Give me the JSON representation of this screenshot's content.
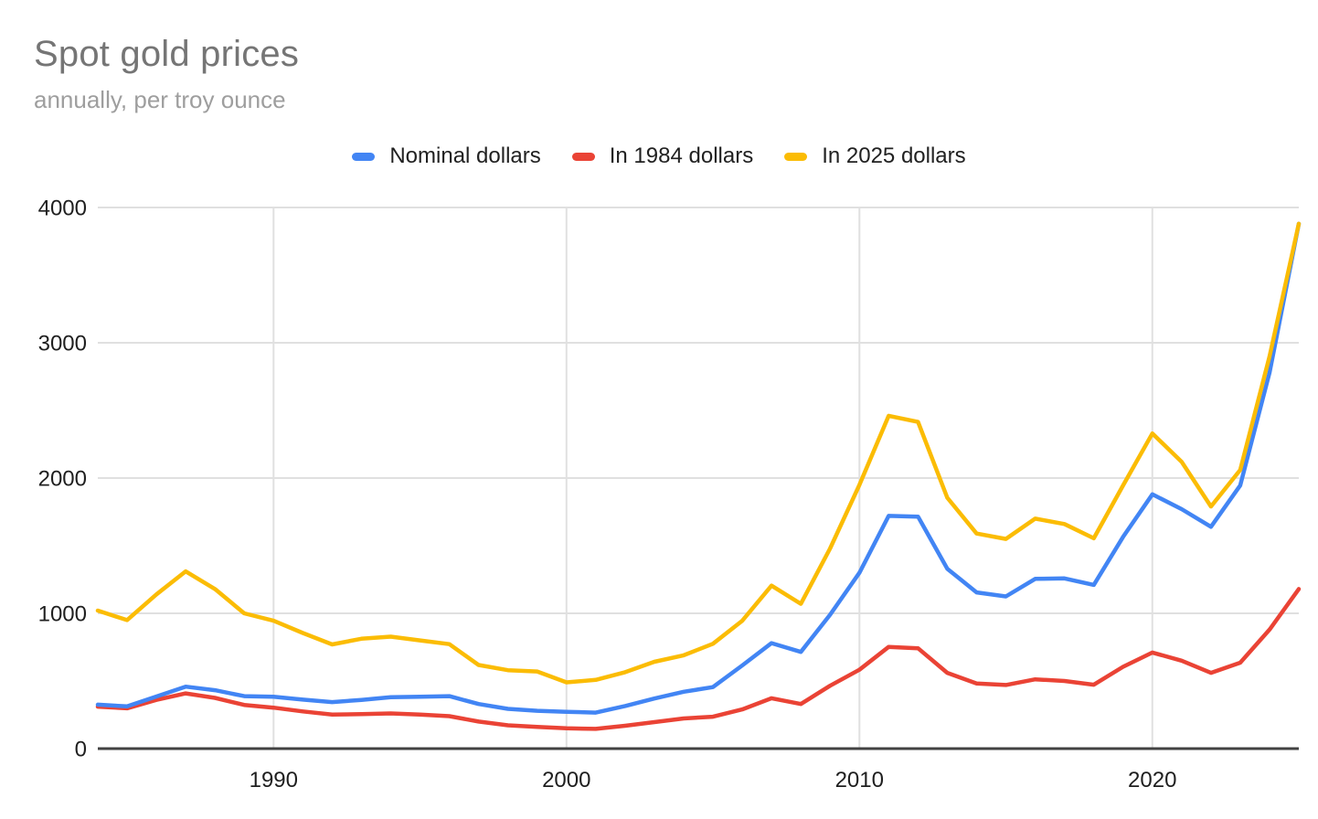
{
  "header": {
    "title": "Spot gold prices",
    "subtitle": "annually, per troy ounce"
  },
  "legend": {
    "items": [
      {
        "label": "Nominal dollars",
        "color": "#4285F4"
      },
      {
        "label": "In 1984 dollars",
        "color": "#EA4335"
      },
      {
        "label": "In 2025 dollars",
        "color": "#FBBC04"
      }
    ]
  },
  "chart_data": {
    "type": "line",
    "title": "Spot gold prices",
    "subtitle": "annually, per troy ounce",
    "xlabel": "",
    "ylabel": "",
    "x": [
      1984,
      1985,
      1986,
      1987,
      1988,
      1989,
      1990,
      1991,
      1992,
      1993,
      1994,
      1995,
      1996,
      1997,
      1998,
      1999,
      2000,
      2001,
      2002,
      2003,
      2004,
      2005,
      2006,
      2007,
      2008,
      2009,
      2010,
      2011,
      2012,
      2013,
      2014,
      2015,
      2016,
      2017,
      2018,
      2019,
      2020,
      2021,
      2022,
      2023,
      2024,
      2025
    ],
    "series": [
      {
        "name": "Nominal dollars",
        "color": "#4285F4",
        "values": [
          325,
          312,
          385,
          458,
          432,
          388,
          384,
          362,
          344,
          360,
          380,
          384,
          388,
          330,
          294,
          280,
          272,
          266,
          315,
          370,
          420,
          455,
          615,
          780,
          715,
          990,
          1300,
          1720,
          1715,
          1330,
          1155,
          1125,
          1255,
          1258,
          1210,
          1565,
          1880,
          1770,
          1640,
          1945,
          2780,
          3880
        ]
      },
      {
        "name": "In 1984 dollars",
        "color": "#EA4335",
        "values": [
          310,
          298,
          360,
          408,
          375,
          323,
          303,
          275,
          252,
          255,
          260,
          252,
          240,
          200,
          172,
          160,
          150,
          146,
          169,
          196,
          223,
          236,
          290,
          372,
          330,
          465,
          583,
          752,
          742,
          560,
          482,
          470,
          512,
          500,
          472,
          605,
          710,
          650,
          560,
          635,
          880,
          1180
        ]
      },
      {
        "name": "In 2025 dollars",
        "color": "#FBBC04",
        "values": [
          1020,
          950,
          1140,
          1310,
          1180,
          1000,
          945,
          855,
          770,
          812,
          828,
          800,
          772,
          618,
          580,
          570,
          490,
          508,
          565,
          642,
          690,
          775,
          945,
          1205,
          1070,
          1480,
          1950,
          2460,
          2415,
          1855,
          1590,
          1550,
          1700,
          1660,
          1555,
          1945,
          2330,
          2120,
          1790,
          2060,
          2900,
          3880
        ]
      }
    ],
    "xlim": [
      1984,
      2025
    ],
    "ylim": [
      0,
      4000
    ],
    "x_ticks": [
      1990,
      2000,
      2010,
      2020
    ],
    "y_ticks": [
      0,
      1000,
      2000,
      3000,
      4000
    ],
    "grid": true,
    "legend_position": "top",
    "draw_order": [
      1,
      0,
      2
    ],
    "colors": {
      "grid": "#e0e0e0",
      "axis": "#424242",
      "tick_label": "#1f1f1f",
      "title": "#757575",
      "subtitle": "#9e9e9e",
      "background": "#ffffff"
    }
  }
}
